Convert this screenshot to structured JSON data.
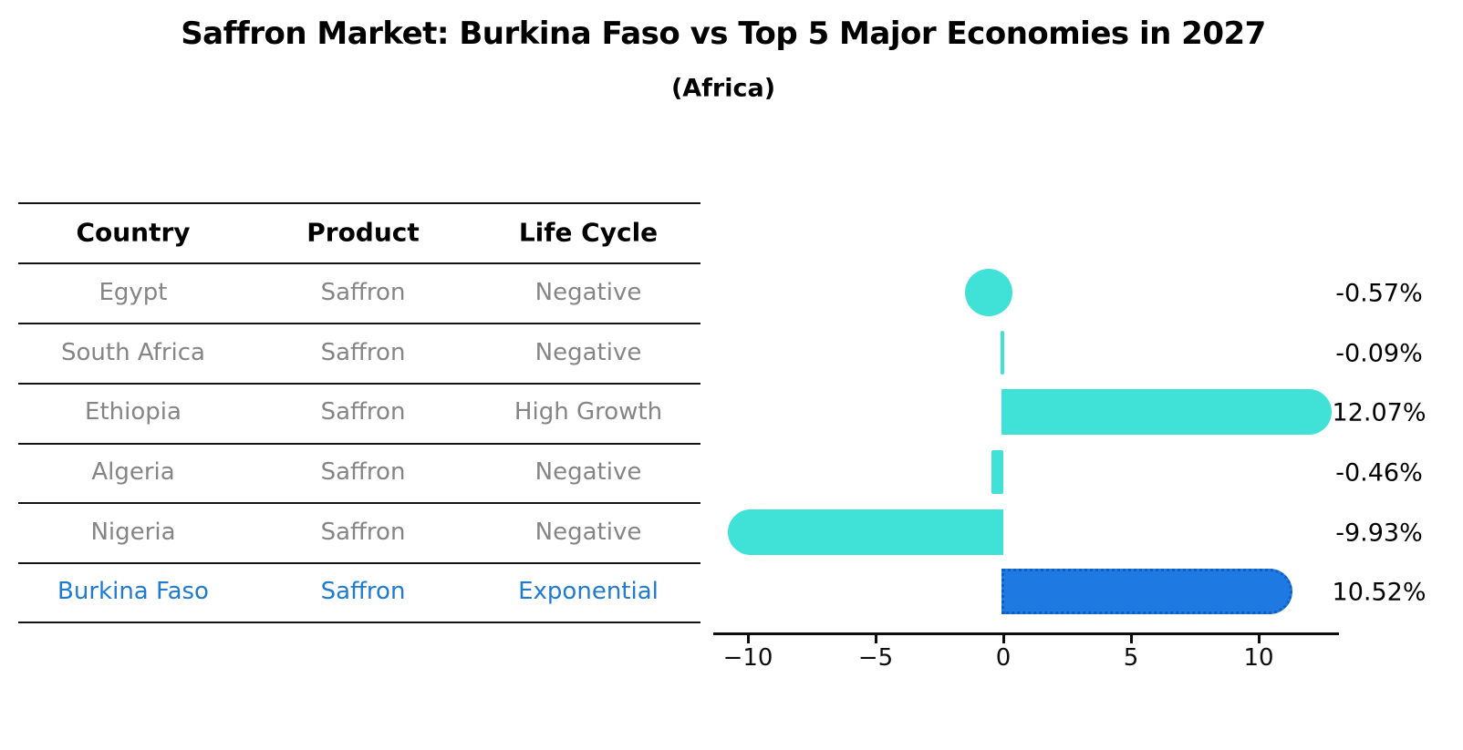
{
  "title": "Saffron Market: Burkina Faso vs Top 5 Major Economies in 2027",
  "subtitle": "(Africa)",
  "table": {
    "headers": {
      "country": "Country",
      "product": "Product",
      "life_cycle": "Life Cycle"
    },
    "rows": [
      {
        "country": "Egypt",
        "product": "Saffron",
        "life_cycle": "Negative"
      },
      {
        "country": "South Africa",
        "product": "Saffron",
        "life_cycle": "Negative"
      },
      {
        "country": "Ethiopia",
        "product": "Saffron",
        "life_cycle": "High Growth"
      },
      {
        "country": "Algeria",
        "product": "Saffron",
        "life_cycle": "Negative"
      },
      {
        "country": "Nigeria",
        "product": "Saffron",
        "life_cycle": "Negative"
      },
      {
        "country": "Burkina Faso",
        "product": "Saffron",
        "life_cycle": "Exponential"
      }
    ],
    "highlight_row": "Burkina Faso"
  },
  "chart_data": {
    "type": "bar",
    "orientation": "horizontal",
    "categories": [
      "Egypt",
      "South Africa",
      "Ethiopia",
      "Algeria",
      "Nigeria",
      "Burkina Faso"
    ],
    "values": [
      -0.57,
      -0.09,
      12.07,
      -0.46,
      -9.93,
      10.52
    ],
    "value_labels": [
      "-0.57%",
      "-0.09%",
      "12.07%",
      "-0.46%",
      "-9.93%",
      "10.52%"
    ],
    "x_tick_values": [
      -10,
      -5,
      0,
      5,
      10
    ],
    "x_tick_labels": [
      "−10",
      "−5",
      "0",
      "5",
      "10"
    ],
    "xlim": [
      -11.4,
      13.1
    ],
    "grid": false,
    "legend": "none",
    "bar_color": "#40E2D8",
    "highlight_bar_color": "#1E79E2",
    "highlight_border_color": "#0D5FC2",
    "highlight_index": 5
  },
  "colors": {
    "background": "#FFFFFF",
    "heading_text": "#000000",
    "row_text": "#858585",
    "highlight_text": "#1F7AD1",
    "axis": "#0D0D0D"
  }
}
